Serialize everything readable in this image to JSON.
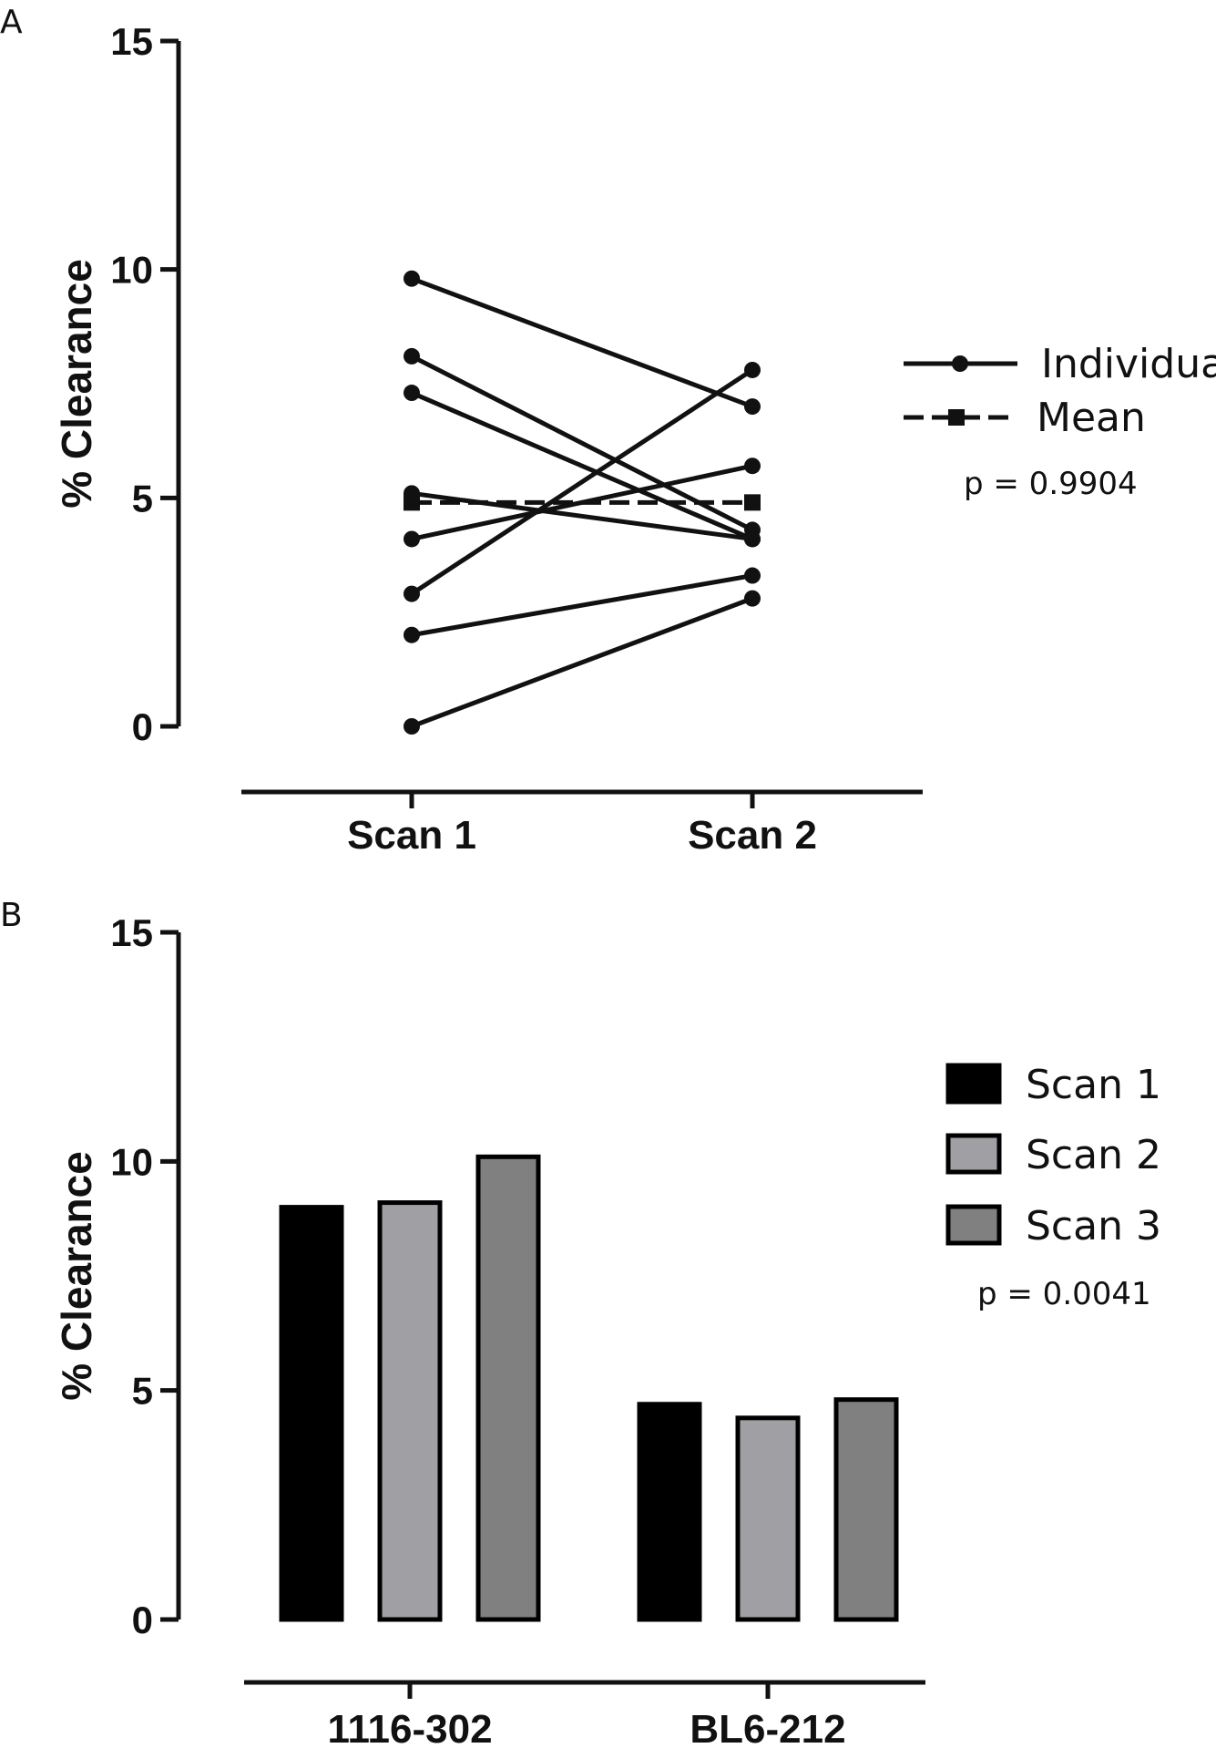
{
  "chart_data": [
    {
      "panel": "A",
      "type": "line",
      "ylabel": "% Clearance",
      "xlabel": "",
      "categories": [
        "Scan 1",
        "Scan 2"
      ],
      "ylim": [
        0,
        15
      ],
      "yticks": [
        "0",
        "5",
        "10",
        "15"
      ],
      "series": [
        {
          "values": [
            9.8,
            7.0
          ]
        },
        {
          "values": [
            8.1,
            4.3
          ]
        },
        {
          "values": [
            7.3,
            4.1
          ]
        },
        {
          "values": [
            5.1,
            4.1
          ]
        },
        {
          "values": [
            4.1,
            5.7
          ]
        },
        {
          "values": [
            2.9,
            7.8
          ]
        },
        {
          "values": [
            2.0,
            3.3
          ]
        },
        {
          "values": [
            0.0,
            2.8
          ]
        }
      ],
      "mean": {
        "values": [
          4.9,
          4.9
        ]
      },
      "legend": {
        "individual": "Individual",
        "mean": "Mean",
        "placement": "right"
      },
      "annotation": "p = 0.9904",
      "colors": {
        "line": "#111111"
      }
    },
    {
      "panel": "B",
      "type": "bar",
      "ylabel": "% Clearance",
      "xlabel": "",
      "categories": [
        "1116-302",
        "BL6-212"
      ],
      "ylim": [
        0,
        15
      ],
      "yticks": [
        "0",
        "5",
        "10",
        "15"
      ],
      "series": [
        {
          "name": "Scan 1",
          "values": [
            9.0,
            4.7
          ],
          "color": "#000000"
        },
        {
          "name": "Scan 2",
          "values": [
            9.1,
            4.4
          ],
          "color": "#a0a0a4"
        },
        {
          "name": "Scan 3",
          "values": [
            10.1,
            4.8
          ],
          "color": "#808080"
        }
      ],
      "legend": {
        "placement": "right"
      },
      "annotation": "p = 0.0041"
    }
  ],
  "panels": {
    "a_letter": "A",
    "b_letter": "B"
  }
}
